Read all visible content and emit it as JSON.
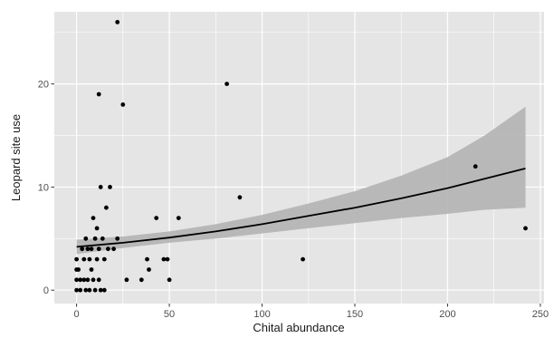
{
  "chart_data": {
    "type": "scatter",
    "title": "",
    "xlabel": "Chital abundance",
    "ylabel": "Leopard site use",
    "xlim": [
      -12,
      252
    ],
    "ylim": [
      -1.3,
      27
    ],
    "x_ticks": [
      0,
      50,
      100,
      150,
      200,
      250
    ],
    "y_ticks": [
      0,
      10,
      20
    ],
    "x_tick_labels": [
      "0",
      "50",
      "100",
      "150",
      "200",
      "250"
    ],
    "y_tick_labels": [
      "0",
      "10",
      "20"
    ],
    "grid": true,
    "legend": "none",
    "colors": {
      "panel": "#e5e5e5",
      "grid": "#ffffff",
      "point": "#000000",
      "ribbon": "#b3b3b3",
      "line": "#000000"
    },
    "points": [
      {
        "x": 0,
        "y": 0
      },
      {
        "x": 0,
        "y": 1
      },
      {
        "x": 0,
        "y": 2
      },
      {
        "x": 0,
        "y": 3
      },
      {
        "x": 1,
        "y": 2
      },
      {
        "x": 2,
        "y": 0
      },
      {
        "x": 2,
        "y": 1
      },
      {
        "x": 3,
        "y": 4
      },
      {
        "x": 4,
        "y": 1
      },
      {
        "x": 4,
        "y": 3
      },
      {
        "x": 5,
        "y": 5
      },
      {
        "x": 5,
        "y": 0
      },
      {
        "x": 6,
        "y": 4
      },
      {
        "x": 6,
        "y": 1
      },
      {
        "x": 7,
        "y": 3
      },
      {
        "x": 7,
        "y": 0
      },
      {
        "x": 8,
        "y": 2
      },
      {
        "x": 8,
        "y": 4
      },
      {
        "x": 9,
        "y": 7
      },
      {
        "x": 9,
        "y": 1
      },
      {
        "x": 10,
        "y": 5
      },
      {
        "x": 10,
        "y": 0
      },
      {
        "x": 11,
        "y": 3
      },
      {
        "x": 11,
        "y": 6
      },
      {
        "x": 12,
        "y": 4
      },
      {
        "x": 12,
        "y": 1
      },
      {
        "x": 12,
        "y": 19
      },
      {
        "x": 13,
        "y": 10
      },
      {
        "x": 13,
        "y": 0
      },
      {
        "x": 14,
        "y": 5
      },
      {
        "x": 15,
        "y": 0
      },
      {
        "x": 15,
        "y": 3
      },
      {
        "x": 16,
        "y": 8
      },
      {
        "x": 17,
        "y": 4
      },
      {
        "x": 18,
        "y": 10
      },
      {
        "x": 20,
        "y": 4
      },
      {
        "x": 22,
        "y": 26
      },
      {
        "x": 22,
        "y": 5
      },
      {
        "x": 25,
        "y": 18
      },
      {
        "x": 27,
        "y": 1
      },
      {
        "x": 35,
        "y": 1
      },
      {
        "x": 38,
        "y": 3
      },
      {
        "x": 39,
        "y": 2
      },
      {
        "x": 43,
        "y": 7
      },
      {
        "x": 47,
        "y": 3
      },
      {
        "x": 49,
        "y": 3
      },
      {
        "x": 50,
        "y": 1
      },
      {
        "x": 55,
        "y": 7
      },
      {
        "x": 81,
        "y": 20
      },
      {
        "x": 88,
        "y": 9
      },
      {
        "x": 122,
        "y": 3
      },
      {
        "x": 215,
        "y": 12
      },
      {
        "x": 242,
        "y": 6
      }
    ],
    "fit": {
      "x": [
        0,
        25,
        50,
        75,
        100,
        125,
        150,
        175,
        200,
        220,
        242
      ],
      "y": [
        4.2,
        4.6,
        5.1,
        5.7,
        6.4,
        7.2,
        8.0,
        8.9,
        9.9,
        10.8,
        11.8
      ]
    },
    "confidence_band": {
      "x": [
        0,
        25,
        50,
        75,
        100,
        125,
        150,
        175,
        200,
        220,
        242
      ],
      "lower": [
        3.5,
        4.1,
        4.6,
        5.0,
        5.5,
        6.0,
        6.5,
        7.0,
        7.4,
        7.8,
        8.0
      ],
      "upper": [
        4.9,
        5.2,
        5.7,
        6.4,
        7.3,
        8.4,
        9.6,
        11.1,
        12.9,
        15.0,
        17.8
      ]
    }
  }
}
